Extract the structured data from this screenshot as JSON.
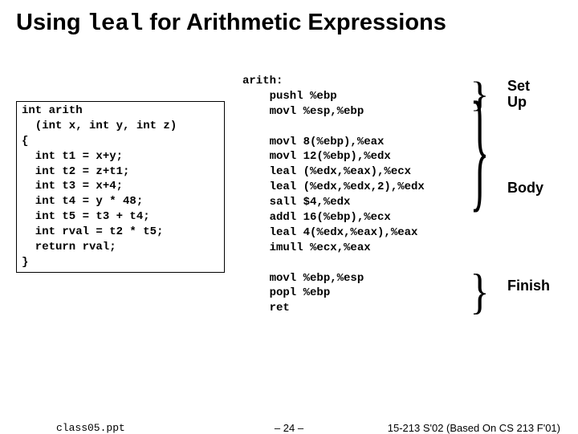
{
  "title_pre": "Using ",
  "title_mono": "leal",
  "title_post": " for Arithmetic Expressions",
  "c_code": "int arith\n  (int x, int y, int z)\n{\n  int t1 = x+y;\n  int t2 = z+t1;\n  int t3 = x+4;\n  int t4 = y * 48;\n  int t5 = t3 + t4;\n  int rval = t2 * t5;\n  return rval;\n}",
  "asm_code": "arith:\n    pushl %ebp\n    movl %esp,%ebp\n\n    movl 8(%ebp),%eax\n    movl 12(%ebp),%edx\n    leal (%edx,%eax),%ecx\n    leal (%edx,%edx,2),%edx\n    sall $4,%edx\n    addl 16(%ebp),%ecx\n    leal 4(%edx,%eax),%eax\n    imull %ecx,%eax\n\n    movl %ebp,%esp\n    popl %ebp\n    ret",
  "labels": {
    "setup": "Set\nUp",
    "body": "Body",
    "finish": "Finish"
  },
  "footer": {
    "left": "class05.ppt",
    "center": "– 24 –",
    "right": "15-213 S'02 (Based On CS 213 F'01)"
  }
}
